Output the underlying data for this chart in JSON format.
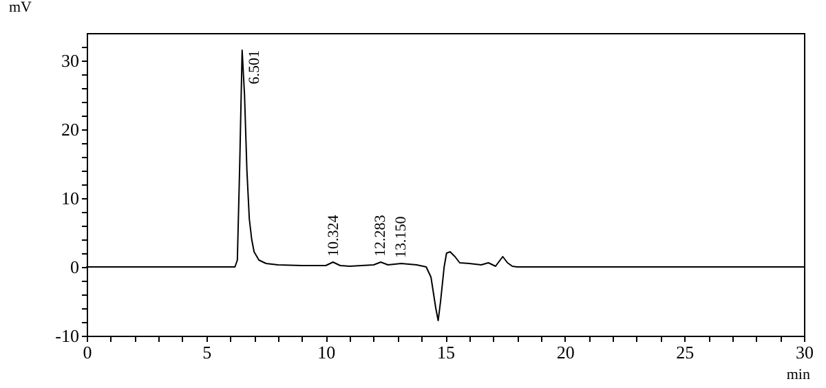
{
  "chart_data": {
    "type": "line",
    "xlabel": "min",
    "ylabel": "mV",
    "x": [
      0,
      6.2,
      6.3,
      6.4,
      6.5,
      6.6,
      6.7,
      6.8,
      6.9,
      7.0,
      7.2,
      7.5,
      8,
      9,
      10,
      10.3,
      10.6,
      11,
      12,
      12.3,
      12.6,
      13.15,
      13.8,
      14.2,
      14.4,
      14.6,
      14.7,
      14.8,
      14.95,
      15.05,
      15.2,
      15.4,
      15.6,
      16,
      16.5,
      16.8,
      17.1,
      17.4,
      17.6,
      17.8,
      18,
      30
    ],
    "series": [
      {
        "color": "#000000",
        "values": [
          0,
          0,
          1,
          15,
          31.5,
          25,
          14,
          7,
          4,
          2.2,
          1,
          0.5,
          0.3,
          0.2,
          0.2,
          0.7,
          0.2,
          0.1,
          0.3,
          0.7,
          0.3,
          0.5,
          0.3,
          0,
          -1.5,
          -6,
          -7.8,
          -5,
          0,
          2,
          2.2,
          1.5,
          0.6,
          0.5,
          0.3,
          0.6,
          0.1,
          1.5,
          0.6,
          0.1,
          0,
          0
        ]
      }
    ],
    "xlim": [
      0,
      30
    ],
    "ylim": [
      -10,
      34
    ],
    "xticks": [
      0,
      {
        "value": 1,
        "label": null
      },
      {
        "value": 2,
        "label": null
      },
      {
        "value": 3,
        "label": null
      },
      {
        "value": 4,
        "label": null
      },
      5,
      {
        "value": 6,
        "label": null
      },
      {
        "value": 7,
        "label": null
      },
      {
        "value": 8,
        "label": null
      },
      {
        "value": 9,
        "label": null
      },
      10,
      {
        "value": 11,
        "label": null
      },
      {
        "value": 12,
        "label": null
      },
      {
        "value": 13,
        "label": null
      },
      {
        "value": 14,
        "label": null
      },
      15,
      {
        "value": 16,
        "label": null
      },
      {
        "value": 17,
        "label": null
      },
      {
        "value": 18,
        "label": null
      },
      {
        "value": 19,
        "label": null
      },
      20,
      {
        "value": 21,
        "label": null
      },
      {
        "value": 22,
        "label": null
      },
      {
        "value": 23,
        "label": null
      },
      {
        "value": 24,
        "label": null
      },
      25,
      {
        "value": 26,
        "label": null
      },
      {
        "value": 27,
        "label": null
      },
      {
        "value": 28,
        "label": null
      },
      {
        "value": 29,
        "label": null
      },
      30
    ],
    "yticks": [
      -10,
      {
        "value": -8,
        "label": null
      },
      {
        "value": -6,
        "label": null
      },
      {
        "value": -4,
        "label": null
      },
      {
        "value": -2,
        "label": null
      },
      0,
      {
        "value": 2,
        "label": null
      },
      {
        "value": 4,
        "label": null
      },
      {
        "value": 6,
        "label": null
      },
      {
        "value": 8,
        "label": null
      },
      10,
      {
        "value": 12,
        "label": null
      },
      {
        "value": 14,
        "label": null
      },
      {
        "value": 16,
        "label": null
      },
      {
        "value": 18,
        "label": null
      },
      20,
      {
        "value": 22,
        "label": null
      },
      {
        "value": 24,
        "label": null
      },
      {
        "value": 26,
        "label": null
      },
      {
        "value": 28,
        "label": null
      },
      30,
      {
        "value": 32,
        "label": null
      }
    ],
    "annotations": [
      {
        "text": "6.501",
        "x": 6.501,
        "y": 31.5
      },
      {
        "text": "10.324",
        "x": 10.324,
        "y": 0.7
      },
      {
        "text": "12.283",
        "x": 12.283,
        "y": 0.7
      },
      {
        "text": "13.150",
        "x": 13.15,
        "y": 0.5
      }
    ],
    "grid": false,
    "marker": "none",
    "line_style": "solid"
  }
}
